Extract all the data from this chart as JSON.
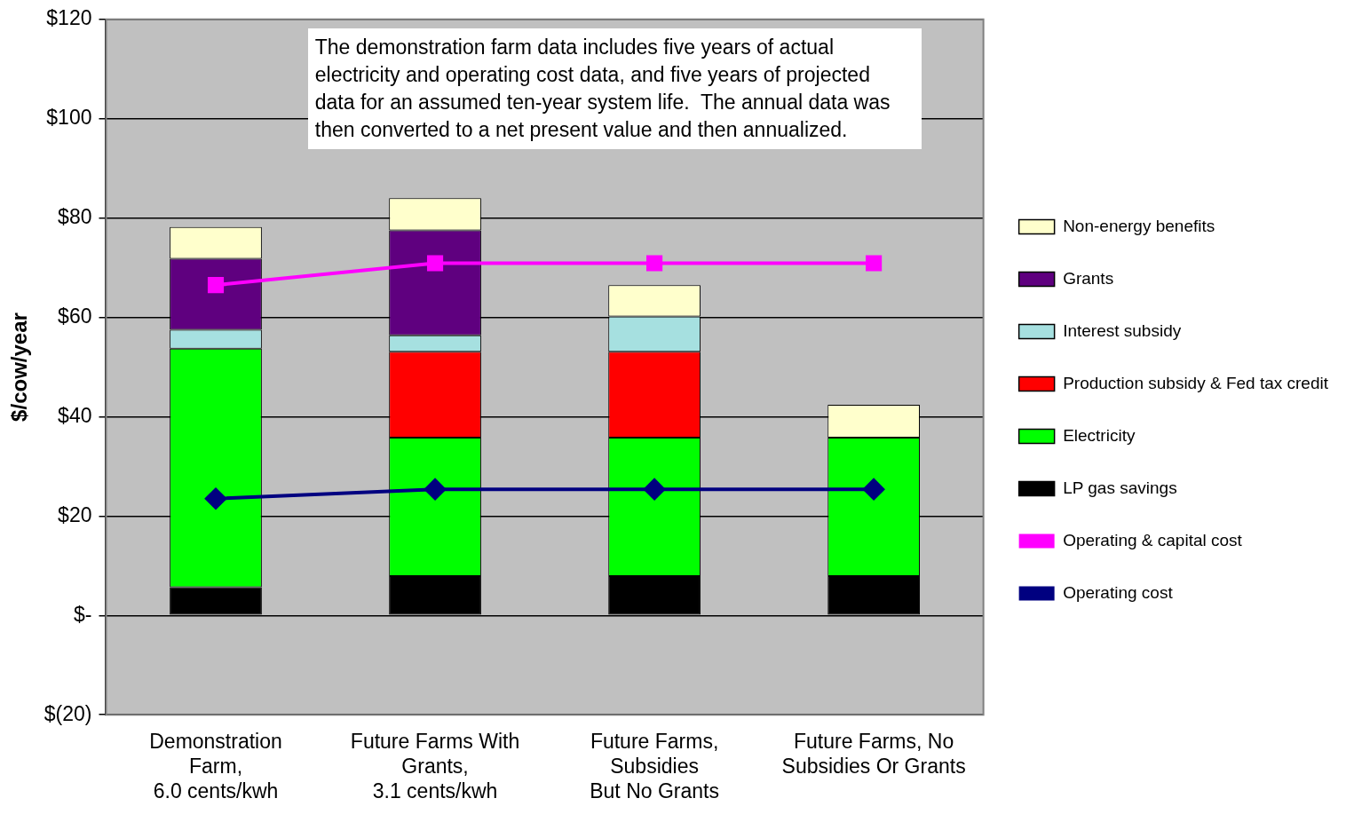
{
  "chart_data": {
    "type": "bar",
    "stacked": true,
    "ylabel": "$/cow/year",
    "categories": [
      "Demonstration\nFarm,\n6.0 cents/kwh",
      "Future Farms With\nGrants,\n3.1 cents/kwh",
      "Future Farms,\nSubsidies\nBut No Grants",
      "Future Farms, No\nSubsidies Or Grants"
    ],
    "series": [
      {
        "name": "LP gas savings",
        "color": "#000000",
        "values": [
          5.7,
          7.9,
          7.9,
          7.9
        ]
      },
      {
        "name": "Electricity",
        "color": "#00ff00",
        "values": [
          48,
          27.9,
          27.9,
          27.9
        ]
      },
      {
        "name": "Production subsidy & Fed tax credit",
        "color": "#ff0000",
        "values": [
          null,
          17.3,
          17.3,
          null
        ]
      },
      {
        "name": "Interest subsidy",
        "color": "#a6e0e0",
        "values": [
          3.8,
          3.3,
          7.1,
          null
        ]
      },
      {
        "name": "Grants",
        "color": "#5f007f",
        "values": [
          14.3,
          21.1,
          null,
          null
        ]
      },
      {
        "name": "Non-energy benefits",
        "color": "#ffffcc",
        "values": [
          6.4,
          6.5,
          6.3,
          6.6
        ]
      },
      {
        "name": "Operating & capital cost",
        "type": "line",
        "marker": "square",
        "color": "#ff00ff",
        "values": [
          66.5,
          70.9,
          70.9,
          70.9
        ]
      },
      {
        "name": "Operating cost",
        "type": "line",
        "marker": "diamond",
        "color": "#000080",
        "values": [
          23.5,
          25.4,
          25.4,
          25.4
        ]
      }
    ],
    "ylim": [
      -20,
      120
    ],
    "yticks": [
      {
        "value": -20,
        "label": "$(20)"
      },
      {
        "value": 0,
        "label": "$-"
      },
      {
        "value": 20,
        "label": "$20"
      },
      {
        "value": 40,
        "label": "$40"
      },
      {
        "value": 60,
        "label": "$60"
      },
      {
        "value": 80,
        "label": "$80"
      },
      {
        "value": 100,
        "label": "$100"
      },
      {
        "value": 120,
        "label": "$120"
      }
    ],
    "grid": "y",
    "legend": "right",
    "line_style": "solid",
    "annotations": [
      "The demonstration farm data includes five years of actual electricity and operating cost data, and five years of projected data for an assumed ten-year system life.  The annual data was then converted to a net present value and then annualized."
    ]
  }
}
